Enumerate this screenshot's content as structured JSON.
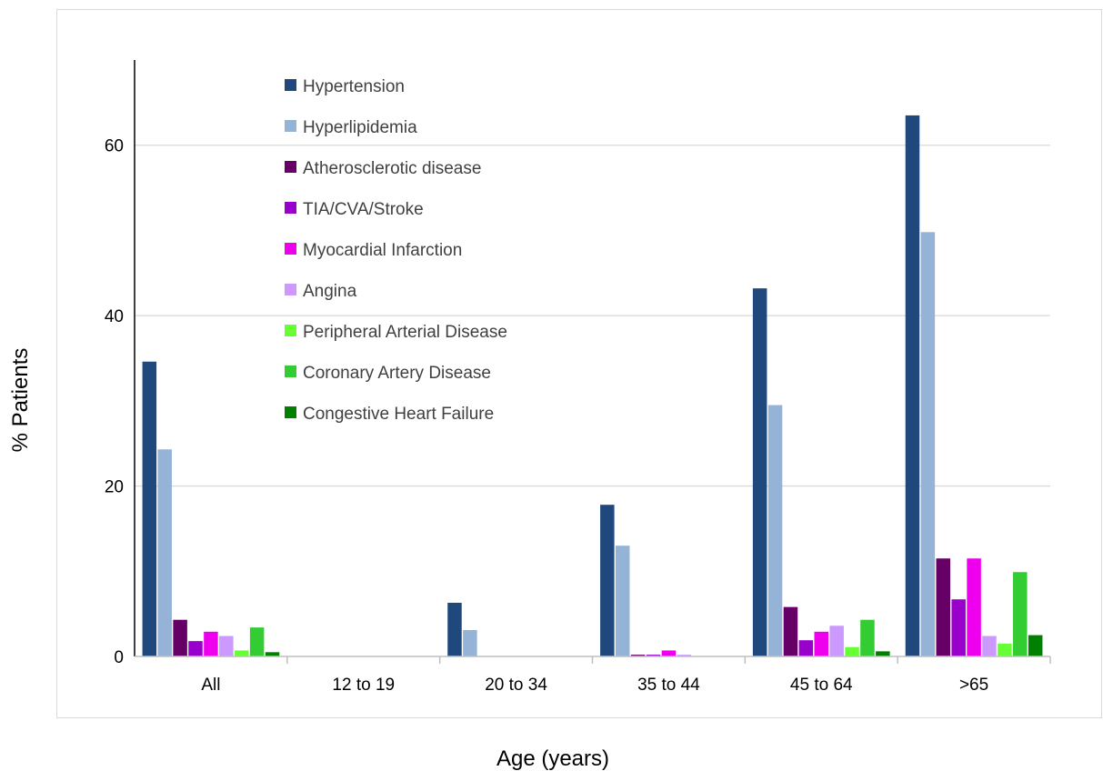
{
  "chart_data": {
    "type": "bar",
    "xlabel": "Age (years)",
    "ylabel": "% Patients",
    "ylim": [
      0,
      70
    ],
    "yticks": [
      0,
      20,
      40,
      60
    ],
    "grid": "horizontal",
    "legend_position": "top-left",
    "categories": [
      "All",
      "12 to 19",
      "20 to 34",
      "35 to 44",
      "45 to 64",
      ">65"
    ],
    "series": [
      {
        "name": "Hypertension",
        "color": "#1f497d",
        "values": [
          34.6,
          0,
          6.3,
          17.8,
          43.2,
          63.5
        ]
      },
      {
        "name": "Hyperlipidemia",
        "color": "#95b3d7",
        "values": [
          24.3,
          0,
          3.1,
          13.0,
          29.5,
          49.8
        ]
      },
      {
        "name": "Atherosclerotic disease",
        "color": "#660066",
        "values": [
          4.3,
          0,
          0,
          0.2,
          5.8,
          11.5
        ]
      },
      {
        "name": "TIA/CVA/Stroke",
        "color": "#9900cc",
        "values": [
          1.8,
          0,
          0,
          0.2,
          1.9,
          6.7
        ]
      },
      {
        "name": "Myocardial Infarction",
        "color": "#ee00ee",
        "values": [
          2.9,
          0,
          0,
          0.7,
          2.9,
          11.5
        ]
      },
      {
        "name": "Angina",
        "color": "#cc99ff",
        "values": [
          2.4,
          0,
          0,
          0.2,
          3.6,
          2.4
        ]
      },
      {
        "name": "Peripheral Arterial Disease",
        "color": "#66ff33",
        "values": [
          0.7,
          0,
          0,
          0,
          1.1,
          1.5
        ]
      },
      {
        "name": "Coronary Artery Disease",
        "color": "#33cc33",
        "values": [
          3.4,
          0,
          0,
          0,
          4.3,
          9.9
        ]
      },
      {
        "name": "Congestive Heart Failure",
        "color": "#008000",
        "values": [
          0.5,
          0,
          0,
          0,
          0.6,
          2.5
        ]
      }
    ]
  }
}
